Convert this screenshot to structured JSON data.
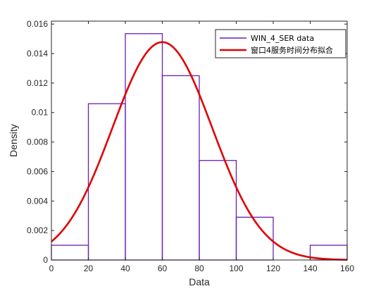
{
  "chart_data": {
    "type": "bar",
    "bin_edges": [
      0,
      20,
      40,
      60,
      80,
      100,
      120,
      140,
      160
    ],
    "values": [
      0.001,
      0.0106,
      0.01535,
      0.0125,
      0.00675,
      0.0029,
      0.0,
      0.001
    ],
    "fit": {
      "name": "窗口4服务时间分布拟合",
      "distribution": "normal",
      "mean": 60,
      "std": 27,
      "color": "#e00000"
    },
    "histogram": {
      "name": "WIN_4_SER data",
      "color": "#6a1fb3"
    },
    "xlabel": "Data",
    "ylabel": "Density",
    "xlim": [
      0,
      160
    ],
    "ylim": [
      0,
      0.0162
    ],
    "xticks": [
      "0",
      "20",
      "40",
      "60",
      "80",
      "100",
      "120",
      "140",
      "160"
    ],
    "xtick_values": [
      0,
      20,
      40,
      60,
      80,
      100,
      120,
      140,
      160
    ],
    "yticks": [
      "0",
      "0.002",
      "0.004",
      "0.006",
      "0.008",
      "0.01",
      "0.012",
      "0.014",
      "0.016"
    ],
    "ytick_values": [
      0,
      0.002,
      0.004,
      0.006,
      0.008,
      0.01,
      0.012,
      0.014,
      0.016
    ],
    "grid": false,
    "legend_position": "top-right"
  }
}
